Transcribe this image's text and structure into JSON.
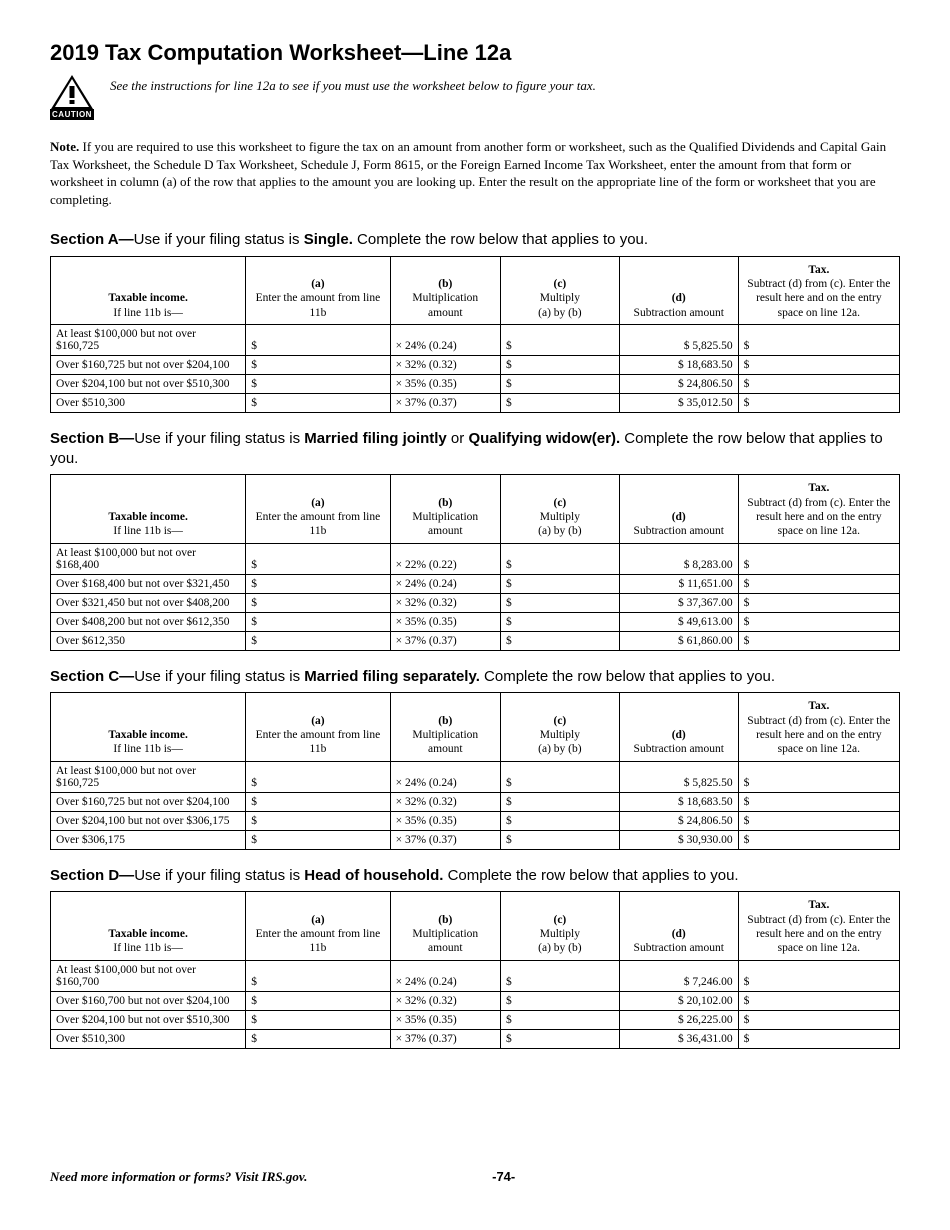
{
  "title": "2019 Tax Computation Worksheet—Line 12a",
  "caution_label": "CAUTION",
  "intro_line": "See the instructions for line 12a to see if you must use the worksheet below to figure your tax.",
  "note_label": "Note.",
  "note_body": "If you are required to use this worksheet to figure the tax on an amount from another form or worksheet, such as the Qualified Dividends and Capital Gain Tax Worksheet, the Schedule D Tax Worksheet, Schedule J, Form 8615, or the Foreign Earned Income Tax Worksheet, enter the amount from that form or worksheet in column (a) of the row that applies to the amount you are looking up. Enter the result on the appropriate line of the form or worksheet that you are completing.",
  "headers": {
    "income_l1": "Taxable income.",
    "income_l2": "If line 11b is—",
    "a_l1": "(a)",
    "a_l2": "Enter the amount from line 11b",
    "b_l1": "(b)",
    "b_l2": "Multiplication amount",
    "c_l1": "(c)",
    "c_l2": "Multiply",
    "c_l3": "(a) by (b)",
    "d_l1": "(d)",
    "d_l2": "Subtraction amount",
    "tax_l1": "Tax.",
    "tax_l2a": "Subtract (d) from (c). Enter the result here and on the entry space on line 12a.",
    "tax_l2b": "Subtract (d) from (c). Enter the result here and on the entry space on line 12a.",
    "tax_l2d": "Subtract (d) from (c). Enter the result here and on the entry space on line 12a."
  },
  "sections": [
    {
      "label": "Section A—",
      "mid": "Use if your filing status is ",
      "status": "Single.",
      "tail": " Complete the row below that applies to you.",
      "tax_header": "Subtract (d) from (c). Enter the result here and on the entry space on line 12a.",
      "rows": [
        {
          "income": "At least $100,000 but not over $160,725",
          "b": "× 24% (0.24)",
          "d": "$  5,825.50"
        },
        {
          "income": "Over $160,725 but not over $204,100",
          "b": "× 32% (0.32)",
          "d": "$ 18,683.50"
        },
        {
          "income": "Over $204,100 but not over $510,300",
          "b": "× 35% (0.35)",
          "d": "$ 24,806.50"
        },
        {
          "income": "Over $510,300",
          "b": "× 37% (0.37)",
          "d": "$ 35,012.50"
        }
      ]
    },
    {
      "label": "Section B—",
      "mid": "Use if your filing status is ",
      "status": "Married filing jointly",
      "mid2": " or ",
      "status2": "Qualifying widow(er).",
      "tail": " Complete the row below that applies to you.",
      "tax_header": "Subtract (d) from (c). Enter the result here and on the entry space on line 12a.",
      "rows": [
        {
          "income": "At least $100,000 but not over $168,400",
          "b": "× 22% (0.22)",
          "d": "$  8,283.00"
        },
        {
          "income": "Over $168,400 but not over $321,450",
          "b": "× 24% (0.24)",
          "d": "$ 11,651.00"
        },
        {
          "income": "Over $321,450 but not over $408,200",
          "b": "× 32% (0.32)",
          "d": "$ 37,367.00"
        },
        {
          "income": "Over $408,200 but not over $612,350",
          "b": "× 35% (0.35)",
          "d": "$ 49,613.00"
        },
        {
          "income": "Over $612,350",
          "b": "× 37% (0.37)",
          "d": "$ 61,860.00"
        }
      ]
    },
    {
      "label": "Section C—",
      "mid": "Use if your filing status is ",
      "status": "Married filing separately.",
      "tail": " Complete the row below that applies to you.",
      "tax_header": "Subtract (d) from (c). Enter the result here and on the entry space on line 12a.",
      "rows": [
        {
          "income": "At least $100,000 but not over $160,725",
          "b": "× 24% (0.24)",
          "d": "$  5,825.50"
        },
        {
          "income": "Over $160,725 but not over $204,100",
          "b": "× 32% (0.32)",
          "d": "$ 18,683.50"
        },
        {
          "income": "Over $204,100 but not over $306,175",
          "b": "× 35% (0.35)",
          "d": "$ 24,806.50"
        },
        {
          "income": "Over $306,175",
          "b": "× 37% (0.37)",
          "d": "$ 30,930.00"
        }
      ]
    },
    {
      "label": "Section D—",
      "mid": "Use if your filing status is ",
      "status": "Head of household.",
      "tail": " Complete the row below that applies to you.",
      "tax_header": "Subtract (d) from (c). Enter the result here and on the entry space on line 12a.",
      "rows": [
        {
          "income": "At least $100,000 but not over $160,700",
          "b": "× 24% (0.24)",
          "d": "$  7,246.00"
        },
        {
          "income": "Over $160,700 but not over $204,100",
          "b": "× 32% (0.32)",
          "d": "$ 20,102.00"
        },
        {
          "income": "Over $204,100 but not over $510,300",
          "b": "× 35% (0.35)",
          "d": "$ 26,225.00"
        },
        {
          "income": "Over $510,300",
          "b": "× 37% (0.37)",
          "d": "$ 36,431.00"
        }
      ]
    }
  ],
  "footer_left": "Need more information or forms? Visit IRS.gov.",
  "footer_center": "-74-"
}
